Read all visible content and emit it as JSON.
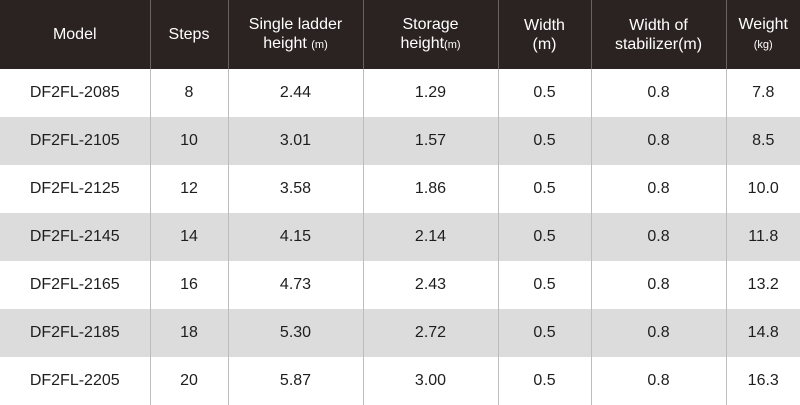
{
  "headers": {
    "model": "Model",
    "steps": "Steps",
    "single_ladder_height_line1": "Single ladder",
    "single_ladder_height_line2": "height",
    "single_ladder_height_unit": "(m)",
    "storage_height_line1": "Storage",
    "storage_height_line2": "height",
    "storage_height_unit": "(m)",
    "width_line1": "Width",
    "width_unit": "(m)",
    "stabilizer_width_line1": "Width of",
    "stabilizer_width_line2": "stabilizer",
    "stabilizer_width_unit": "(m)",
    "weight_line1": "Weight",
    "weight_unit": "(kg)"
  },
  "rows": [
    {
      "model": "DF2FL-2085",
      "steps": "8",
      "single_height": "2.44",
      "storage_height": "1.29",
      "width": "0.5",
      "stabilizer_width": "0.8",
      "weight": "7.8"
    },
    {
      "model": "DF2FL-2105",
      "steps": "10",
      "single_height": "3.01",
      "storage_height": "1.57",
      "width": "0.5",
      "stabilizer_width": "0.8",
      "weight": "8.5"
    },
    {
      "model": "DF2FL-2125",
      "steps": "12",
      "single_height": "3.58",
      "storage_height": "1.86",
      "width": "0.5",
      "stabilizer_width": "0.8",
      "weight": "10.0"
    },
    {
      "model": "DF2FL-2145",
      "steps": "14",
      "single_height": "4.15",
      "storage_height": "2.14",
      "width": "0.5",
      "stabilizer_width": "0.8",
      "weight": "11.8"
    },
    {
      "model": "DF2FL-2165",
      "steps": "16",
      "single_height": "4.73",
      "storage_height": "2.43",
      "width": "0.5",
      "stabilizer_width": "0.8",
      "weight": "13.2"
    },
    {
      "model": "DF2FL-2185",
      "steps": "18",
      "single_height": "5.30",
      "storage_height": "2.72",
      "width": "0.5",
      "stabilizer_width": "0.8",
      "weight": "14.8"
    },
    {
      "model": "DF2FL-2205",
      "steps": "20",
      "single_height": "5.87",
      "storage_height": "3.00",
      "width": "0.5",
      "stabilizer_width": "0.8",
      "weight": "16.3"
    }
  ]
}
